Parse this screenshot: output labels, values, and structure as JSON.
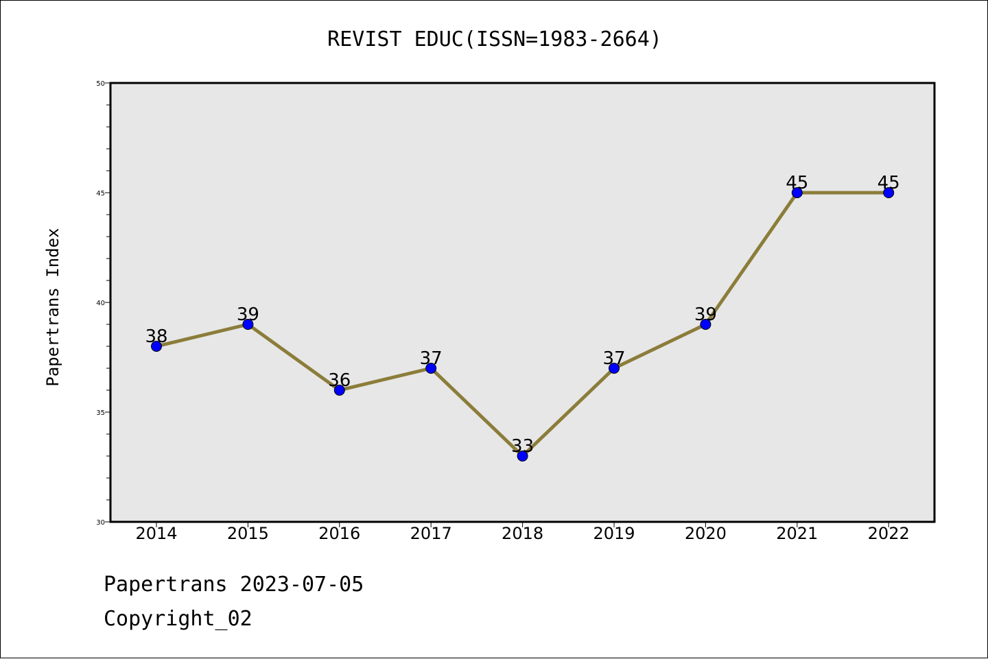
{
  "footer": {
    "line1": "Papertrans 2023-07-05",
    "line2": "Copyright_02"
  },
  "chart_data": {
    "type": "line",
    "title": "REVIST EDUC(ISSN=1983-2664)",
    "xlabel": "",
    "ylabel": "Papertrans Index",
    "categories": [
      "2014",
      "2015",
      "2016",
      "2017",
      "2018",
      "2019",
      "2020",
      "2021",
      "2022"
    ],
    "values": [
      38,
      39,
      36,
      37,
      33,
      37,
      39,
      45,
      45
    ],
    "ylim": [
      30,
      50
    ],
    "yticks": [
      30,
      35,
      40,
      45,
      50
    ],
    "grid": false,
    "legend": "none",
    "colors": {
      "line": "#8b7d3a",
      "marker": "#0000ff",
      "plot_background": "#e7e7e7"
    }
  }
}
